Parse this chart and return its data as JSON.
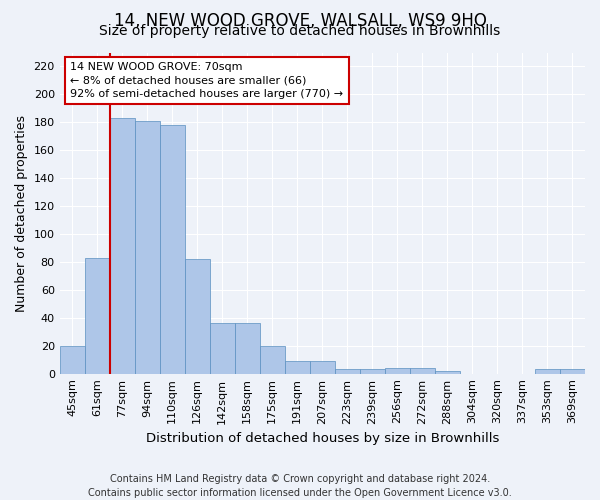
{
  "title": "14, NEW WOOD GROVE, WALSALL, WS9 9HQ",
  "subtitle": "Size of property relative to detached houses in Brownhills",
  "xlabel": "Distribution of detached houses by size in Brownhills",
  "ylabel": "Number of detached properties",
  "categories": [
    "45sqm",
    "61sqm",
    "77sqm",
    "94sqm",
    "110sqm",
    "126sqm",
    "142sqm",
    "158sqm",
    "175sqm",
    "191sqm",
    "207sqm",
    "223sqm",
    "239sqm",
    "256sqm",
    "272sqm",
    "288sqm",
    "304sqm",
    "320sqm",
    "337sqm",
    "353sqm",
    "369sqm"
  ],
  "values": [
    20,
    83,
    183,
    181,
    178,
    82,
    36,
    36,
    20,
    9,
    9,
    3,
    3,
    4,
    4,
    2,
    0,
    0,
    0,
    3,
    3
  ],
  "bar_color": "#aec6e8",
  "bar_edge_color": "#5a8fc0",
  "ylim": [
    0,
    230
  ],
  "yticks": [
    0,
    20,
    40,
    60,
    80,
    100,
    120,
    140,
    160,
    180,
    200,
    220
  ],
  "vline_x": 1.5,
  "vline_color": "#cc0000",
  "annotation_text": "14 NEW WOOD GROVE: 70sqm\n← 8% of detached houses are smaller (66)\n92% of semi-detached houses are larger (770) →",
  "annotation_box_color": "#ffffff",
  "annotation_box_edge": "#cc0000",
  "footer": "Contains HM Land Registry data © Crown copyright and database right 2024.\nContains public sector information licensed under the Open Government Licence v3.0.",
  "background_color": "#eef2f9",
  "title_fontsize": 12,
  "subtitle_fontsize": 10,
  "xlabel_fontsize": 9.5,
  "ylabel_fontsize": 9,
  "footer_fontsize": 7,
  "tick_fontsize": 8,
  "annotation_fontsize": 8
}
